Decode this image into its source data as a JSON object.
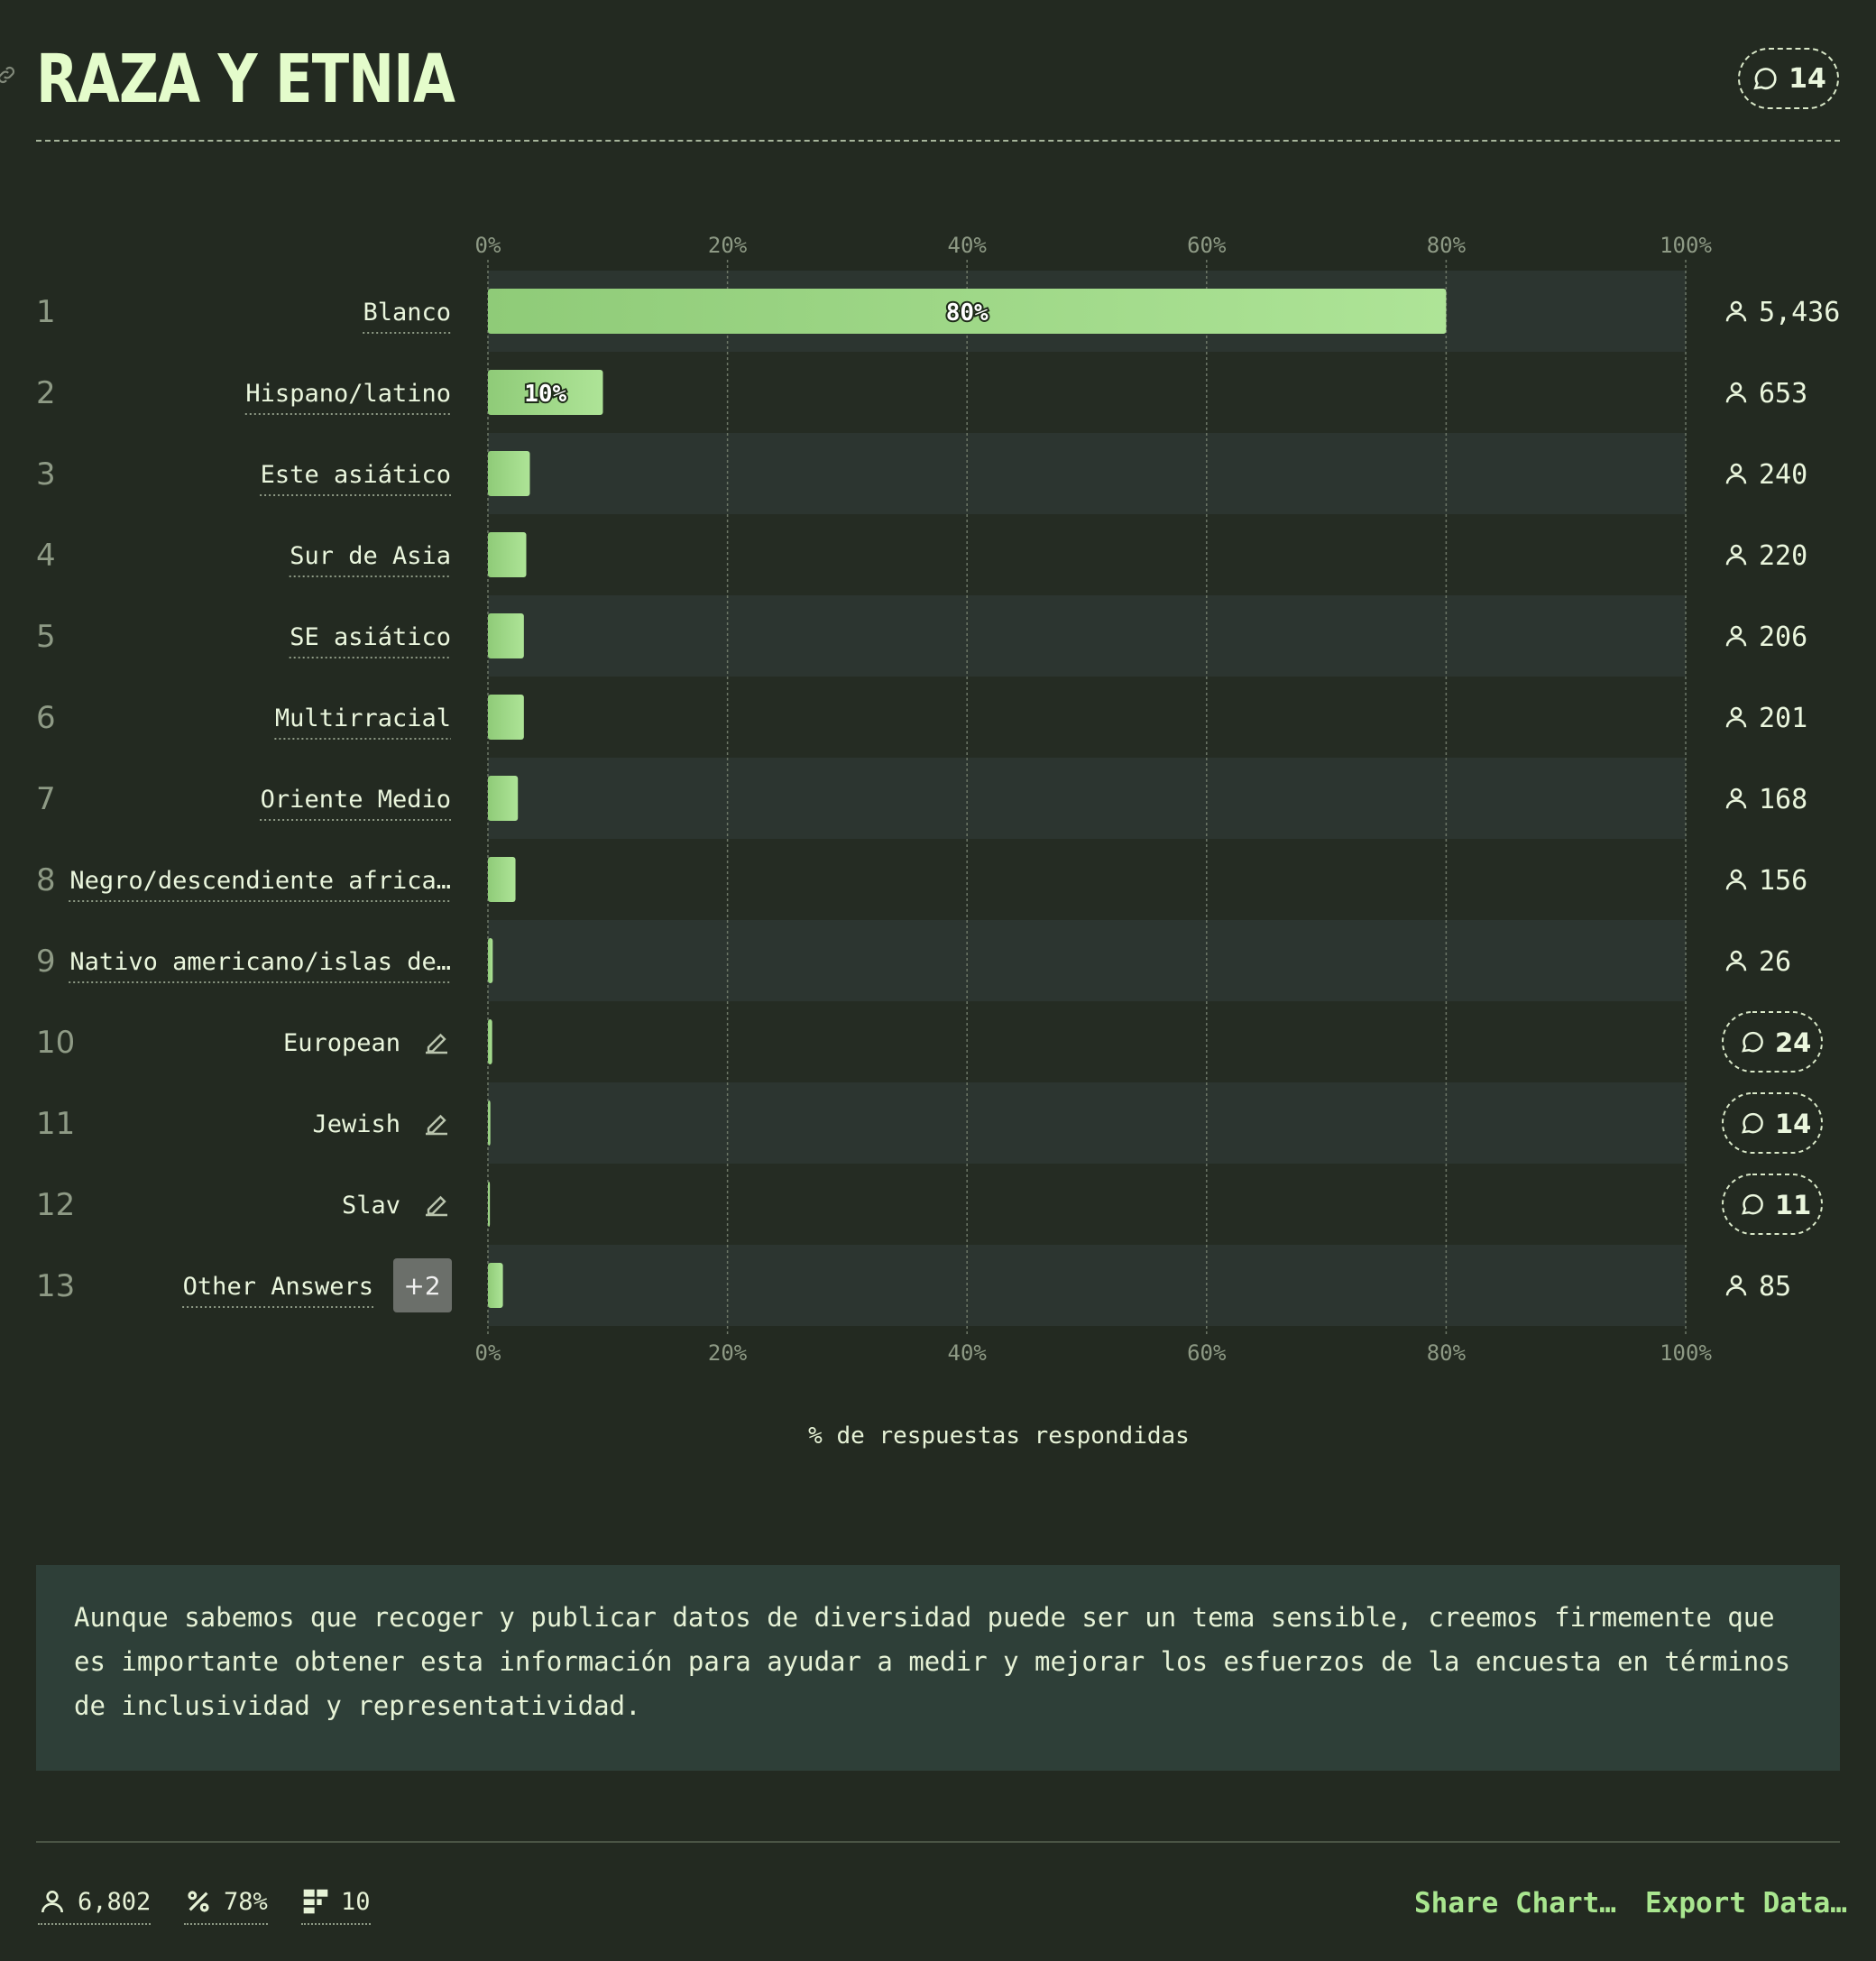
{
  "header": {
    "title": "RAZA Y ETNIA",
    "comments": "14"
  },
  "chart_data": {
    "type": "bar",
    "orientation": "horizontal",
    "xlabel": "% de respuestas respondidas",
    "xlim": [
      0,
      100
    ],
    "ticks": [
      "0%",
      "20%",
      "40%",
      "60%",
      "80%",
      "100%"
    ],
    "rows": [
      {
        "rank": "1",
        "label": "Blanco",
        "value": 80,
        "count": "5,436",
        "shown_label": "80%",
        "kind": "count"
      },
      {
        "rank": "2",
        "label": "Hispano/latino",
        "value": 9.6,
        "count": "653",
        "shown_label": "10%",
        "kind": "count"
      },
      {
        "rank": "3",
        "label": "Este asiático",
        "value": 3.5,
        "count": "240",
        "kind": "count"
      },
      {
        "rank": "4",
        "label": "Sur de Asia",
        "value": 3.2,
        "count": "220",
        "kind": "count"
      },
      {
        "rank": "5",
        "label": "SE asiático",
        "value": 3.0,
        "count": "206",
        "kind": "count"
      },
      {
        "rank": "6",
        "label": "Multirracial",
        "value": 3.0,
        "count": "201",
        "kind": "count"
      },
      {
        "rank": "7",
        "label": "Oriente Medio",
        "value": 2.5,
        "count": "168",
        "kind": "count"
      },
      {
        "rank": "8",
        "label": "Negro/descendiente africa…",
        "value": 2.3,
        "count": "156",
        "kind": "count"
      },
      {
        "rank": "9",
        "label": "Nativo americano/islas de…",
        "value": 0.4,
        "count": "26",
        "kind": "count"
      },
      {
        "rank": "10",
        "label": "European",
        "value": 0.35,
        "count": "24",
        "kind": "comment",
        "editable": true
      },
      {
        "rank": "11",
        "label": "Jewish",
        "value": 0.2,
        "count": "14",
        "kind": "comment",
        "editable": true
      },
      {
        "rank": "12",
        "label": "Slav",
        "value": 0.16,
        "count": "11",
        "kind": "comment",
        "editable": true
      },
      {
        "rank": "13",
        "label": "Other Answers",
        "value": 1.25,
        "count": "85",
        "kind": "count",
        "badge": "+2"
      }
    ],
    "colors": {
      "bar_start": "#8fcb78",
      "bar_end": "#aee497",
      "stripe_light": "#2c3530",
      "stripe_dark": "#252c23",
      "grid": "#6d7767"
    }
  },
  "note": "Aunque sabemos que recoger y publicar datos de diversidad puede ser un tema sensible, creemos firmemente que es importante obtener esta información para ayudar a medir y mejorar los esfuerzos de la encuesta en términos de inclusividad y representatividad.",
  "footer": {
    "respondents": "6,802",
    "percent": "78%",
    "options": "10",
    "share_label": "Share Chart…",
    "export_label": "Export Data…"
  }
}
